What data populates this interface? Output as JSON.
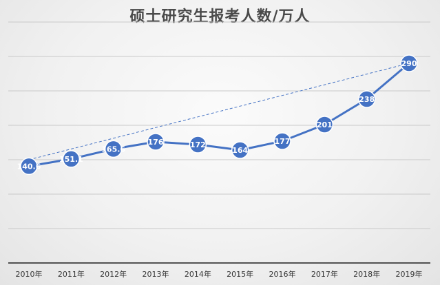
{
  "chart_data": {
    "type": "line",
    "title": "硕士研究生报考人数/万人",
    "categories": [
      "2010年",
      "2011年",
      "2012年",
      "2013年",
      "2014年",
      "2015年",
      "2016年",
      "2017年",
      "2018年",
      "2019年"
    ],
    "values": [
      140.6,
      151.1,
      165.6,
      176,
      172,
      164,
      177,
      201,
      238,
      290
    ],
    "data_labels": [
      "140.6",
      "151.1",
      "165.6",
      "176",
      "172",
      "164",
      "177",
      "201",
      "238",
      "290"
    ],
    "ylim": [
      0,
      350
    ],
    "ytick_step": 50,
    "grid": true,
    "legend": "none",
    "trendline": {
      "type": "linear",
      "style": "dashed",
      "start_value": 150,
      "end_value": 290
    },
    "colors": {
      "line": "#4472C4",
      "marker": "#4472C4",
      "marker_edge": "#ffffff",
      "grid": "#c9c9c9",
      "axis": "#1f1f1f"
    }
  }
}
